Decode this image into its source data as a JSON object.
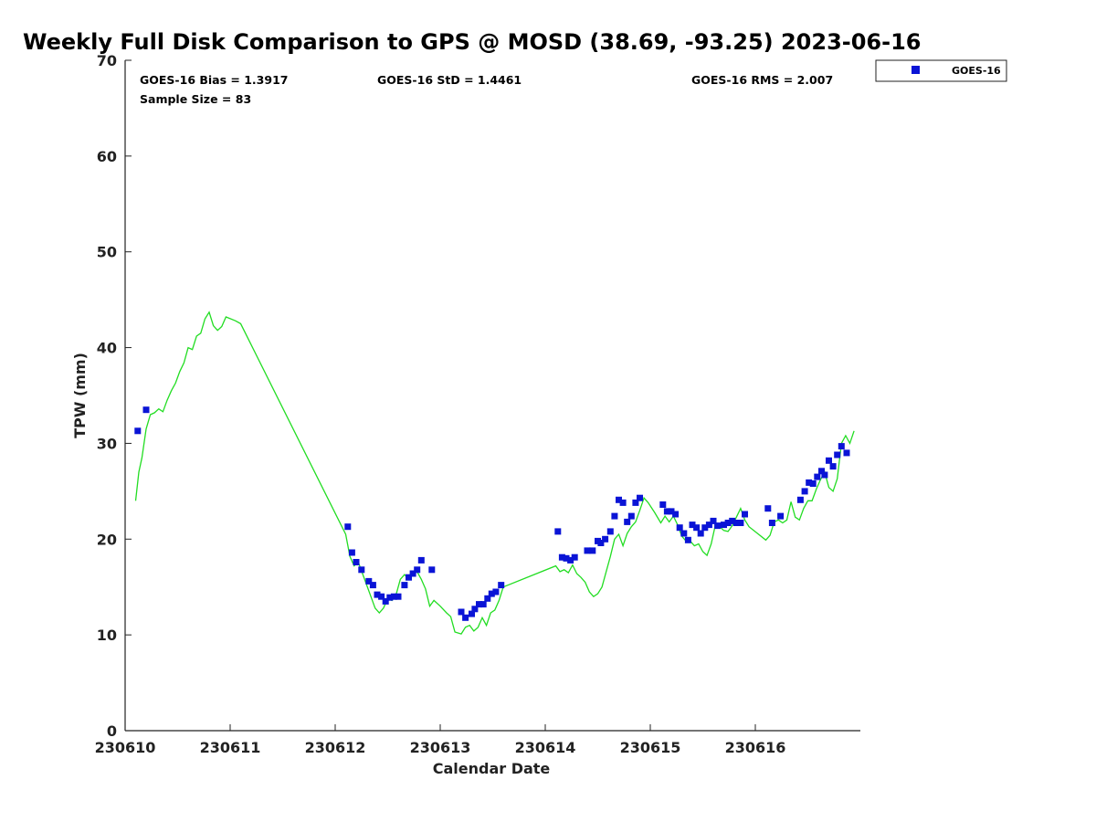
{
  "chart_data": {
    "type": "scatter",
    "title": "Weekly Full Disk Comparison to GPS @ MOSD (38.69, -93.25) 2023-06-16",
    "xlabel": "Calendar Date",
    "ylabel": "TPW (mm)",
    "xlim": [
      230610,
      230617
    ],
    "ylim": [
      0,
      70
    ],
    "xticks": [
      "230610",
      "230611",
      "230612",
      "230613",
      "230614",
      "230615",
      "230616"
    ],
    "yticks": [
      "0",
      "10",
      "20",
      "30",
      "40",
      "50",
      "60",
      "70"
    ],
    "grid": false,
    "legend_position": "top-right",
    "stats": {
      "bias": "GOES-16 Bias = 1.3917",
      "std": "GOES-16 StD = 1.4461",
      "rms": "GOES-16 RMS = 2.007",
      "sample": "Sample Size = 83"
    },
    "series": [
      {
        "name": "GOES-16",
        "marker": "square",
        "color": "#0a14d6",
        "points": [
          [
            230610.12,
            31.3
          ],
          [
            230610.2,
            33.5
          ],
          [
            230612.12,
            21.3
          ],
          [
            230612.16,
            18.6
          ],
          [
            230612.2,
            17.6
          ],
          [
            230612.25,
            16.8
          ],
          [
            230612.32,
            15.6
          ],
          [
            230612.36,
            15.2
          ],
          [
            230612.4,
            14.2
          ],
          [
            230612.44,
            14.0
          ],
          [
            230612.48,
            13.5
          ],
          [
            230612.52,
            13.9
          ],
          [
            230612.56,
            14.0
          ],
          [
            230612.6,
            14.0
          ],
          [
            230612.66,
            15.2
          ],
          [
            230612.7,
            16.0
          ],
          [
            230612.74,
            16.4
          ],
          [
            230612.78,
            16.8
          ],
          [
            230612.82,
            17.8
          ],
          [
            230612.92,
            16.8
          ],
          [
            230613.2,
            12.4
          ],
          [
            230613.24,
            11.8
          ],
          [
            230613.3,
            12.2
          ],
          [
            230613.33,
            12.7
          ],
          [
            230613.37,
            13.2
          ],
          [
            230613.41,
            13.2
          ],
          [
            230613.45,
            13.8
          ],
          [
            230613.49,
            14.3
          ],
          [
            230613.53,
            14.5
          ],
          [
            230613.58,
            15.2
          ],
          [
            230614.12,
            20.8
          ],
          [
            230614.16,
            18.1
          ],
          [
            230614.2,
            18.0
          ],
          [
            230614.24,
            17.8
          ],
          [
            230614.28,
            18.1
          ],
          [
            230614.4,
            18.8
          ],
          [
            230614.45,
            18.8
          ],
          [
            230614.5,
            19.8
          ],
          [
            230614.53,
            19.6
          ],
          [
            230614.57,
            20.0
          ],
          [
            230614.62,
            20.8
          ],
          [
            230614.66,
            22.4
          ],
          [
            230614.7,
            24.1
          ],
          [
            230614.74,
            23.8
          ],
          [
            230614.78,
            21.8
          ],
          [
            230614.82,
            22.4
          ],
          [
            230614.86,
            23.8
          ],
          [
            230614.9,
            24.3
          ],
          [
            230615.12,
            23.6
          ],
          [
            230615.16,
            22.9
          ],
          [
            230615.2,
            22.9
          ],
          [
            230615.24,
            22.6
          ],
          [
            230615.28,
            21.2
          ],
          [
            230615.32,
            20.6
          ],
          [
            230615.36,
            19.9
          ],
          [
            230615.4,
            21.5
          ],
          [
            230615.44,
            21.2
          ],
          [
            230615.48,
            20.6
          ],
          [
            230615.52,
            21.2
          ],
          [
            230615.56,
            21.5
          ],
          [
            230615.6,
            21.9
          ],
          [
            230615.64,
            21.4
          ],
          [
            230615.7,
            21.5
          ],
          [
            230615.74,
            21.7
          ],
          [
            230615.78,
            21.9
          ],
          [
            230615.82,
            21.7
          ],
          [
            230615.86,
            21.7
          ],
          [
            230615.9,
            22.6
          ],
          [
            230616.12,
            23.2
          ],
          [
            230616.16,
            21.7
          ],
          [
            230616.24,
            22.4
          ],
          [
            230616.43,
            24.1
          ],
          [
            230616.47,
            25.0
          ],
          [
            230616.51,
            25.9
          ],
          [
            230616.55,
            25.8
          ],
          [
            230616.59,
            26.5
          ],
          [
            230616.63,
            27.1
          ],
          [
            230616.66,
            26.7
          ],
          [
            230616.7,
            28.2
          ],
          [
            230616.74,
            27.6
          ],
          [
            230616.78,
            28.8
          ],
          [
            230616.82,
            29.7
          ],
          [
            230616.87,
            29.0
          ]
        ]
      },
      {
        "marker": "line",
        "color": "#22dd22",
        "points": [
          [
            230610.1,
            24.0
          ],
          [
            230610.13,
            27.0
          ],
          [
            230610.16,
            28.5
          ],
          [
            230610.2,
            31.5
          ],
          [
            230610.24,
            33.0
          ],
          [
            230610.28,
            33.2
          ],
          [
            230610.32,
            33.6
          ],
          [
            230610.36,
            33.3
          ],
          [
            230610.4,
            34.5
          ],
          [
            230610.44,
            35.5
          ],
          [
            230610.48,
            36.3
          ],
          [
            230610.52,
            37.5
          ],
          [
            230610.56,
            38.4
          ],
          [
            230610.6,
            40.0
          ],
          [
            230610.64,
            39.8
          ],
          [
            230610.68,
            41.2
          ],
          [
            230610.72,
            41.5
          ],
          [
            230610.76,
            43.0
          ],
          [
            230610.8,
            43.7
          ],
          [
            230610.84,
            42.3
          ],
          [
            230610.88,
            41.8
          ],
          [
            230610.92,
            42.2
          ],
          [
            230610.96,
            43.2
          ],
          [
            230611.05,
            42.8
          ],
          [
            230611.1,
            42.5
          ],
          [
            230612.1,
            20.5
          ],
          [
            230612.14,
            18.2
          ],
          [
            230612.18,
            17.2
          ],
          [
            230612.22,
            17.6
          ],
          [
            230612.26,
            16.4
          ],
          [
            230612.3,
            15.2
          ],
          [
            230612.34,
            14.0
          ],
          [
            230612.38,
            12.8
          ],
          [
            230612.42,
            12.3
          ],
          [
            230612.46,
            12.8
          ],
          [
            230612.5,
            13.8
          ],
          [
            230612.54,
            13.6
          ],
          [
            230612.58,
            14.2
          ],
          [
            230612.62,
            15.8
          ],
          [
            230612.66,
            16.3
          ],
          [
            230612.7,
            15.8
          ],
          [
            230612.74,
            16.3
          ],
          [
            230612.78,
            16.6
          ],
          [
            230612.82,
            15.8
          ],
          [
            230612.86,
            14.8
          ],
          [
            230612.9,
            13.0
          ],
          [
            230612.94,
            13.6
          ],
          [
            230613.0,
            13.0
          ],
          [
            230613.06,
            12.3
          ],
          [
            230613.1,
            11.9
          ],
          [
            230613.14,
            10.3
          ],
          [
            230613.2,
            10.1
          ],
          [
            230613.24,
            10.8
          ],
          [
            230613.28,
            11.0
          ],
          [
            230613.32,
            10.4
          ],
          [
            230613.36,
            10.8
          ],
          [
            230613.4,
            11.8
          ],
          [
            230613.44,
            11.0
          ],
          [
            230613.48,
            12.3
          ],
          [
            230613.52,
            12.6
          ],
          [
            230613.56,
            13.6
          ],
          [
            230613.6,
            15.0
          ],
          [
            230614.1,
            17.2
          ],
          [
            230614.14,
            16.6
          ],
          [
            230614.18,
            16.8
          ],
          [
            230614.22,
            16.5
          ],
          [
            230614.26,
            17.3
          ],
          [
            230614.3,
            16.4
          ],
          [
            230614.34,
            16.0
          ],
          [
            230614.38,
            15.5
          ],
          [
            230614.42,
            14.5
          ],
          [
            230614.46,
            14.0
          ],
          [
            230614.5,
            14.3
          ],
          [
            230614.54,
            15.0
          ],
          [
            230614.58,
            16.6
          ],
          [
            230614.62,
            18.2
          ],
          [
            230614.66,
            20.0
          ],
          [
            230614.7,
            20.5
          ],
          [
            230614.74,
            19.3
          ],
          [
            230614.78,
            20.6
          ],
          [
            230614.82,
            21.3
          ],
          [
            230614.86,
            21.8
          ],
          [
            230614.9,
            23.0
          ],
          [
            230614.94,
            24.3
          ],
          [
            230614.98,
            23.8
          ],
          [
            230615.04,
            22.8
          ],
          [
            230615.1,
            21.7
          ],
          [
            230615.14,
            22.4
          ],
          [
            230615.18,
            21.8
          ],
          [
            230615.22,
            22.4
          ],
          [
            230615.26,
            21.5
          ],
          [
            230615.3,
            20.3
          ],
          [
            230615.34,
            19.8
          ],
          [
            230615.38,
            19.8
          ],
          [
            230615.42,
            19.3
          ],
          [
            230615.46,
            19.5
          ],
          [
            230615.5,
            18.7
          ],
          [
            230615.54,
            18.3
          ],
          [
            230615.58,
            19.5
          ],
          [
            230615.62,
            21.5
          ],
          [
            230615.66,
            21.3
          ],
          [
            230615.7,
            20.9
          ],
          [
            230615.74,
            20.8
          ],
          [
            230615.78,
            21.4
          ],
          [
            230615.82,
            22.3
          ],
          [
            230615.86,
            23.2
          ],
          [
            230615.9,
            22.0
          ],
          [
            230615.94,
            21.3
          ],
          [
            230616.02,
            20.6
          ],
          [
            230616.1,
            19.9
          ],
          [
            230616.14,
            20.4
          ],
          [
            230616.18,
            21.8
          ],
          [
            230616.22,
            22.0
          ],
          [
            230616.26,
            21.7
          ],
          [
            230616.3,
            22.0
          ],
          [
            230616.34,
            23.9
          ],
          [
            230616.38,
            22.3
          ],
          [
            230616.42,
            22.0
          ],
          [
            230616.46,
            23.2
          ],
          [
            230616.5,
            24.0
          ],
          [
            230616.54,
            24.0
          ],
          [
            230616.58,
            25.2
          ],
          [
            230616.62,
            26.2
          ],
          [
            230616.66,
            27.0
          ],
          [
            230616.7,
            25.4
          ],
          [
            230616.74,
            25.0
          ],
          [
            230616.78,
            26.3
          ],
          [
            230616.82,
            30.0
          ],
          [
            230616.86,
            30.8
          ],
          [
            230616.9,
            30.0
          ],
          [
            230616.94,
            31.3
          ]
        ]
      }
    ]
  }
}
